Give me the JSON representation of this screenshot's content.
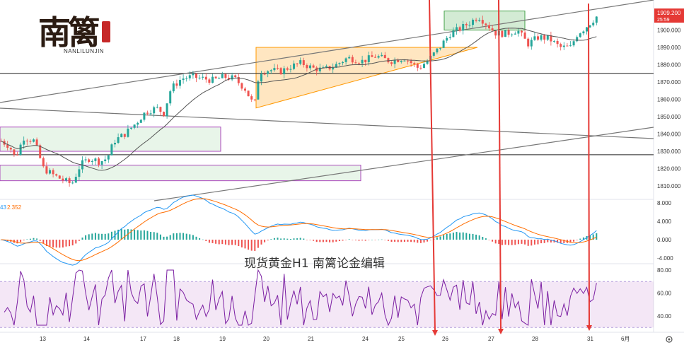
{
  "logo": {
    "name": "南篱",
    "sub": "NANLILUNJIN"
  },
  "caption": "现货黄金H1  南篱论金编辑",
  "price_badge": {
    "price": "1909.200",
    "countdown": "25:59",
    "color": "#e53935"
  },
  "macd_legend": {
    "a": "43",
    "b": "2.352"
  },
  "colors": {
    "bull": "#26a69a",
    "bear": "#ef5350",
    "ma": "#555555",
    "macd": "#2196f3",
    "signal": "#ff6d00",
    "rsi": "#7b1fa2",
    "arrow": "#e53935"
  },
  "chart_data": [
    {
      "type": "candlestick",
      "price_axis": {
        "ticks": [
          "1910.000",
          "1900.000",
          "1890.000",
          "1880.000",
          "1870.000",
          "1860.000",
          "1850.000",
          "1840.000",
          "1830.000",
          "1820.000",
          "1810.000"
        ],
        "range": [
          1805,
          1914
        ]
      },
      "x_ticks": [
        "13",
        "14",
        "17",
        "18",
        "19",
        "20",
        "21",
        "24",
        "25",
        "26",
        "27",
        "28",
        "31",
        "6月"
      ],
      "close_path": [
        [
          0,
          1836
        ],
        [
          12,
          1833
        ],
        [
          20,
          1826
        ],
        [
          32,
          1838
        ],
        [
          47,
          1836
        ],
        [
          60,
          1820
        ],
        [
          75,
          1816
        ],
        [
          95,
          1812
        ],
        [
          100,
          1811
        ],
        [
          112,
          1822
        ],
        [
          125,
          1826
        ],
        [
          140,
          1824
        ],
        [
          150,
          1826
        ],
        [
          160,
          1836
        ],
        [
          175,
          1840
        ],
        [
          190,
          1846
        ],
        [
          205,
          1853
        ],
        [
          220,
          1855
        ],
        [
          230,
          1852
        ],
        [
          240,
          1866
        ],
        [
          255,
          1872
        ],
        [
          270,
          1873
        ],
        [
          285,
          1872
        ],
        [
          300,
          1871
        ],
        [
          315,
          1873
        ],
        [
          330,
          1872
        ],
        [
          345,
          1866
        ],
        [
          358,
          1856
        ],
        [
          365,
          1876
        ],
        [
          380,
          1877
        ],
        [
          395,
          1876
        ],
        [
          410,
          1879
        ],
        [
          425,
          1881
        ],
        [
          440,
          1878
        ],
        [
          455,
          1877
        ],
        [
          470,
          1879
        ],
        [
          490,
          1884
        ],
        [
          510,
          1882
        ],
        [
          530,
          1885
        ],
        [
          550,
          1882
        ],
        [
          570,
          1884
        ],
        [
          590,
          1878
        ],
        [
          605,
          1883
        ],
        [
          620,
          1890
        ],
        [
          635,
          1898
        ],
        [
          650,
          1901
        ],
        [
          665,
          1905
        ],
        [
          675,
          1908
        ],
        [
          690,
          1902
        ],
        [
          700,
          1898
        ],
        [
          715,
          1898
        ],
        [
          730,
          1900
        ],
        [
          745,
          1892
        ],
        [
          760,
          1896
        ],
        [
          775,
          1895
        ],
        [
          790,
          1890
        ],
        [
          805,
          1890
        ],
        [
          815,
          1898
        ],
        [
          825,
          1901
        ],
        [
          835,
          1905
        ],
        [
          845,
          1909
        ]
      ],
      "zones": [
        {
          "kind": "support",
          "top": 1844,
          "bottom": 1830
        },
        {
          "kind": "support",
          "top": 1822,
          "bottom": 1813
        },
        {
          "kind": "resistance",
          "top": 1911,
          "bottom": 1900
        },
        {
          "kind": "triangle",
          "top": 1890,
          "bottom": 1855
        }
      ],
      "horizontal_lines": [
        1875,
        1828
      ],
      "last_price": 1909.2
    },
    {
      "type": "bar",
      "name": "MACD",
      "axis_ticks": [
        "8.000",
        "4.000",
        "0.000",
        "-4.000"
      ],
      "range": [
        -8,
        8
      ]
    },
    {
      "type": "line",
      "name": "RSI",
      "axis_ticks": [
        "80.00",
        "60.00",
        "40.00"
      ],
      "range": [
        30,
        85
      ],
      "band": [
        30,
        70
      ]
    }
  ]
}
